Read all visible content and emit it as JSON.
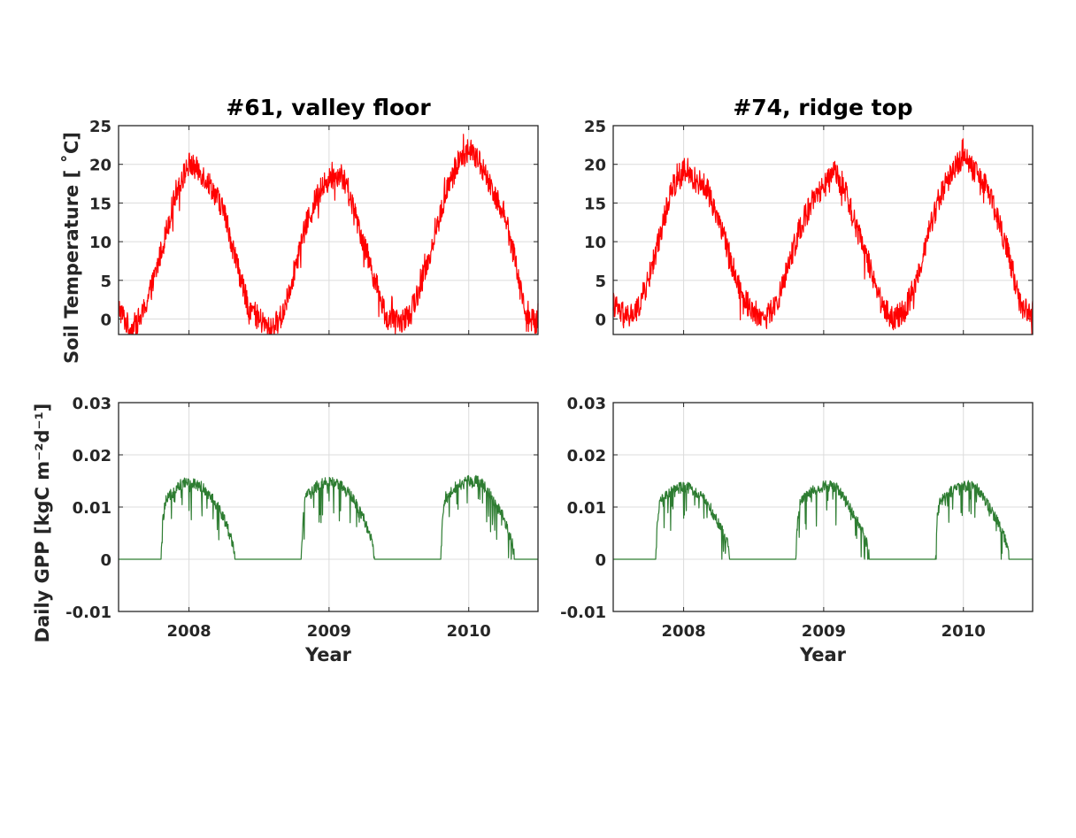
{
  "chart_data": [
    {
      "type": "line",
      "title": "#61, valley floor",
      "ylabel": "Soil Temperature [ ˚C]",
      "xlabel": "",
      "xlim": [
        "2007-07-01",
        "2010-07-01"
      ],
      "ylim": [
        -2,
        25
      ],
      "xticks": [
        "2008",
        "2009",
        "2010"
      ],
      "yticks": [
        "0",
        "5",
        "10",
        "15",
        "20",
        "25"
      ],
      "yticks_values": [
        0,
        5,
        10,
        15,
        20,
        25
      ],
      "grid": true,
      "color": "#ff0000",
      "series": [
        {
          "x": [
            "2007-07-01",
            "2007-08-01",
            "2007-09-01",
            "2007-10-01",
            "2007-11-01",
            "2007-12-01",
            "2008-01-01",
            "2008-02-01",
            "2008-03-01",
            "2008-04-01",
            "2008-05-01",
            "2008-06-01",
            "2008-07-01",
            "2008-08-01",
            "2008-09-01",
            "2008-10-01",
            "2008-11-01",
            "2008-12-01",
            "2009-01-01",
            "2009-02-01",
            "2009-03-01",
            "2009-04-01",
            "2009-05-01",
            "2009-06-01",
            "2009-07-01",
            "2009-08-01",
            "2009-09-01",
            "2009-10-01",
            "2009-11-01",
            "2009-12-01",
            "2010-01-01",
            "2010-02-01",
            "2010-03-01",
            "2010-04-01",
            "2010-05-01",
            "2010-06-01",
            "2010-07-01"
          ],
          "values": [
            1.5,
            -1.5,
            0.5,
            5,
            11,
            17,
            20,
            19,
            17,
            14,
            8,
            2,
            0,
            -1.5,
            0.5,
            6,
            12,
            16,
            18,
            19,
            15,
            10,
            5,
            0,
            -0.5,
            0.5,
            5,
            10,
            16,
            20,
            22,
            20,
            17,
            14,
            8,
            0,
            -0.5
          ]
        }
      ]
    },
    {
      "type": "line",
      "title": "#74, ridge top",
      "ylabel": "",
      "xlabel": "",
      "xlim": [
        "2007-07-01",
        "2010-07-01"
      ],
      "ylim": [
        -2,
        25
      ],
      "xticks": [
        "2008",
        "2009",
        "2010"
      ],
      "yticks": [
        "0",
        "5",
        "10",
        "15",
        "20",
        "25"
      ],
      "yticks_values": [
        0,
        5,
        10,
        15,
        20,
        25
      ],
      "grid": true,
      "color": "#ff0000",
      "series": [
        {
          "x": [
            "2007-07-01",
            "2007-08-01",
            "2007-09-01",
            "2007-10-01",
            "2007-11-01",
            "2007-12-01",
            "2008-01-01",
            "2008-02-01",
            "2008-03-01",
            "2008-04-01",
            "2008-05-01",
            "2008-06-01",
            "2008-07-01",
            "2008-08-01",
            "2008-09-01",
            "2008-10-01",
            "2008-11-01",
            "2008-12-01",
            "2009-01-01",
            "2009-02-01",
            "2009-03-01",
            "2009-04-01",
            "2009-05-01",
            "2009-06-01",
            "2009-07-01",
            "2009-08-01",
            "2009-09-01",
            "2009-10-01",
            "2009-11-01",
            "2009-12-01",
            "2010-01-01",
            "2010-02-01",
            "2010-03-01",
            "2010-04-01",
            "2010-05-01",
            "2010-06-01",
            "2010-07-01"
          ],
          "values": [
            2,
            0,
            1,
            5,
            11,
            17,
            19,
            18,
            17,
            13,
            8,
            3,
            1,
            0,
            2,
            7,
            12,
            15,
            17,
            19,
            16,
            11,
            7,
            2,
            0,
            1,
            5,
            11,
            16,
            19,
            21,
            19,
            17,
            13,
            8,
            1.5,
            1
          ]
        }
      ]
    },
    {
      "type": "line",
      "title": "",
      "ylabel": "Daily GPP [kgC m⁻²d⁻¹]",
      "xlabel": "Year",
      "xlim": [
        "2007-07-01",
        "2010-07-01"
      ],
      "ylim": [
        -0.01,
        0.03
      ],
      "xticks": [
        "2008",
        "2009",
        "2010"
      ],
      "xticks_values": [
        "2008-01-01",
        "2009-01-01",
        "2010-01-01"
      ],
      "yticks": [
        "-0.01",
        "0",
        "0.01",
        "0.02",
        "0.03"
      ],
      "yticks_values": [
        -0.01,
        0,
        0.01,
        0.02,
        0.03
      ],
      "grid": true,
      "color": "#2e7d32",
      "series": [
        {
          "x": [
            "2007-07-01",
            "2007-10-20",
            "2007-10-25",
            "2007-11-01",
            "2007-12-01",
            "2008-01-01",
            "2008-02-01",
            "2008-03-01",
            "2008-04-01",
            "2008-04-25",
            "2008-05-01",
            "2008-10-20",
            "2008-10-25",
            "2008-11-01",
            "2008-12-01",
            "2009-01-01",
            "2009-02-01",
            "2009-03-01",
            "2009-04-01",
            "2009-04-25",
            "2009-05-01",
            "2009-10-20",
            "2009-10-25",
            "2009-11-01",
            "2009-12-01",
            "2010-01-01",
            "2010-02-01",
            "2010-03-01",
            "2010-04-01",
            "2010-04-25",
            "2010-05-01",
            "2010-07-01"
          ],
          "values": [
            0,
            0,
            0.008,
            0.011,
            0.014,
            0.015,
            0.014,
            0.012,
            0.008,
            0.003,
            0,
            0,
            0.008,
            0.012,
            0.014,
            0.015,
            0.014,
            0.012,
            0.008,
            0.003,
            0,
            0,
            0.008,
            0.012,
            0.014,
            0.015,
            0.015,
            0.012,
            0.008,
            0.003,
            0,
            0
          ]
        }
      ]
    },
    {
      "type": "line",
      "title": "",
      "ylabel": "",
      "xlabel": "Year",
      "xlim": [
        "2007-07-01",
        "2010-07-01"
      ],
      "ylim": [
        -0.01,
        0.03
      ],
      "xticks": [
        "2008",
        "2009",
        "2010"
      ],
      "xticks_values": [
        "2008-01-01",
        "2009-01-01",
        "2010-01-01"
      ],
      "yticks": [
        "-0.01",
        "0",
        "0.01",
        "0.02",
        "0.03"
      ],
      "yticks_values": [
        -0.01,
        0,
        0.01,
        0.02,
        0.03
      ],
      "grid": true,
      "color": "#2e7d32",
      "series": [
        {
          "x": [
            "2007-07-01",
            "2007-10-20",
            "2007-10-25",
            "2007-11-01",
            "2007-12-01",
            "2008-01-01",
            "2008-02-01",
            "2008-03-01",
            "2008-04-01",
            "2008-04-25",
            "2008-05-01",
            "2008-10-20",
            "2008-10-25",
            "2008-11-01",
            "2008-12-01",
            "2009-01-01",
            "2009-02-01",
            "2009-03-01",
            "2009-04-01",
            "2009-04-25",
            "2009-05-01",
            "2009-10-20",
            "2009-10-25",
            "2009-11-01",
            "2009-12-01",
            "2010-01-01",
            "2010-02-01",
            "2010-03-01",
            "2010-04-01",
            "2010-04-25",
            "2010-05-01",
            "2010-07-01"
          ],
          "values": [
            0,
            0,
            0.008,
            0.011,
            0.013,
            0.014,
            0.013,
            0.011,
            0.007,
            0.003,
            0,
            0,
            0.008,
            0.011,
            0.013,
            0.014,
            0.014,
            0.011,
            0.007,
            0.003,
            0,
            0,
            0.008,
            0.011,
            0.013,
            0.014,
            0.014,
            0.011,
            0.007,
            0.003,
            0,
            0
          ]
        }
      ]
    }
  ]
}
